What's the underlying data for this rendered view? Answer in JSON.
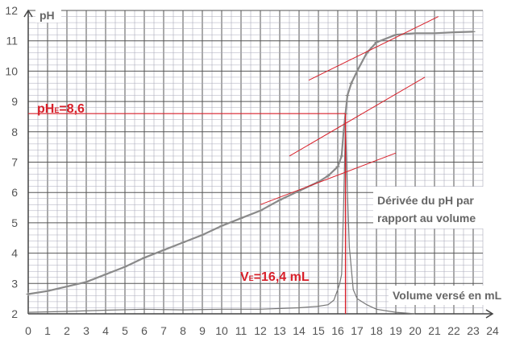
{
  "chart_data": {
    "type": "line",
    "xlabel": "Volume versé en mL",
    "ylabel": "pH",
    "xlim": [
      0,
      24
    ],
    "ylim": [
      2,
      12
    ],
    "grid": true,
    "x_ticks": [
      "0",
      "1",
      "2",
      "3",
      "4",
      "5",
      "6",
      "7",
      "8",
      "9",
      "10",
      "11",
      "12",
      "13",
      "14",
      "15",
      "16",
      "17",
      "18",
      "19",
      "20",
      "21",
      "22",
      "23",
      "24"
    ],
    "y_ticks": [
      "2",
      "3",
      "4",
      "5",
      "6",
      "7",
      "8",
      "9",
      "10",
      "11",
      "12"
    ],
    "series": [
      {
        "name": "pH",
        "color": "#8a8a8a",
        "x": [
          0,
          1,
          2,
          3,
          4,
          5,
          6,
          7,
          8,
          9,
          10,
          11,
          12,
          13,
          14,
          15,
          15.5,
          16,
          16.2,
          16.3,
          16.4,
          16.5,
          16.7,
          17,
          17.5,
          18,
          19,
          20,
          21,
          22,
          23
        ],
        "y": [
          2.65,
          2.75,
          2.9,
          3.05,
          3.3,
          3.55,
          3.85,
          4.1,
          4.35,
          4.6,
          4.9,
          5.15,
          5.4,
          5.75,
          6.05,
          6.35,
          6.55,
          6.85,
          7.2,
          8.0,
          8.6,
          9.2,
          9.6,
          10.0,
          10.6,
          10.95,
          11.2,
          11.25,
          11.25,
          11.28,
          11.3
        ]
      },
      {
        "name": "Dérivée du pH par rapport au volume",
        "color": "#777777",
        "x": [
          0,
          2,
          4,
          6,
          8,
          10,
          12,
          14,
          15,
          15.5,
          15.8,
          16,
          16.1,
          16.2,
          16.3,
          16.4,
          16.5,
          16.6,
          16.8,
          17,
          17.5,
          18,
          19,
          20
        ],
        "y": [
          2.05,
          2.08,
          2.12,
          2.15,
          2.13,
          2.15,
          2.15,
          2.2,
          2.25,
          2.3,
          2.45,
          2.8,
          3.0,
          3.3,
          5.5,
          8.3,
          6.0,
          4.2,
          2.8,
          2.5,
          2.3,
          2.15,
          2.05,
          2.0
        ]
      }
    ],
    "tangents": [
      {
        "x": [
          12,
          19
        ],
        "y": [
          5.6,
          7.3
        ]
      },
      {
        "x": [
          13.5,
          20.5
        ],
        "y": [
          7.2,
          9.8
        ]
      },
      {
        "x": [
          14.5,
          21.2
        ],
        "y": [
          9.7,
          11.8
        ]
      }
    ],
    "equivalence": {
      "ve": 16.4,
      "phe": 8.6,
      "ve_label": "V",
      "ve_sub": "E",
      "ve_text": "=16,4 mL",
      "phe_label": "pH",
      "phe_sub": "E",
      "phe_text": "=8,6"
    },
    "derivative_label_line1": "Dérivée du pH par",
    "derivative_label_line2": "rapport au volume",
    "accent": "#d8202a"
  }
}
